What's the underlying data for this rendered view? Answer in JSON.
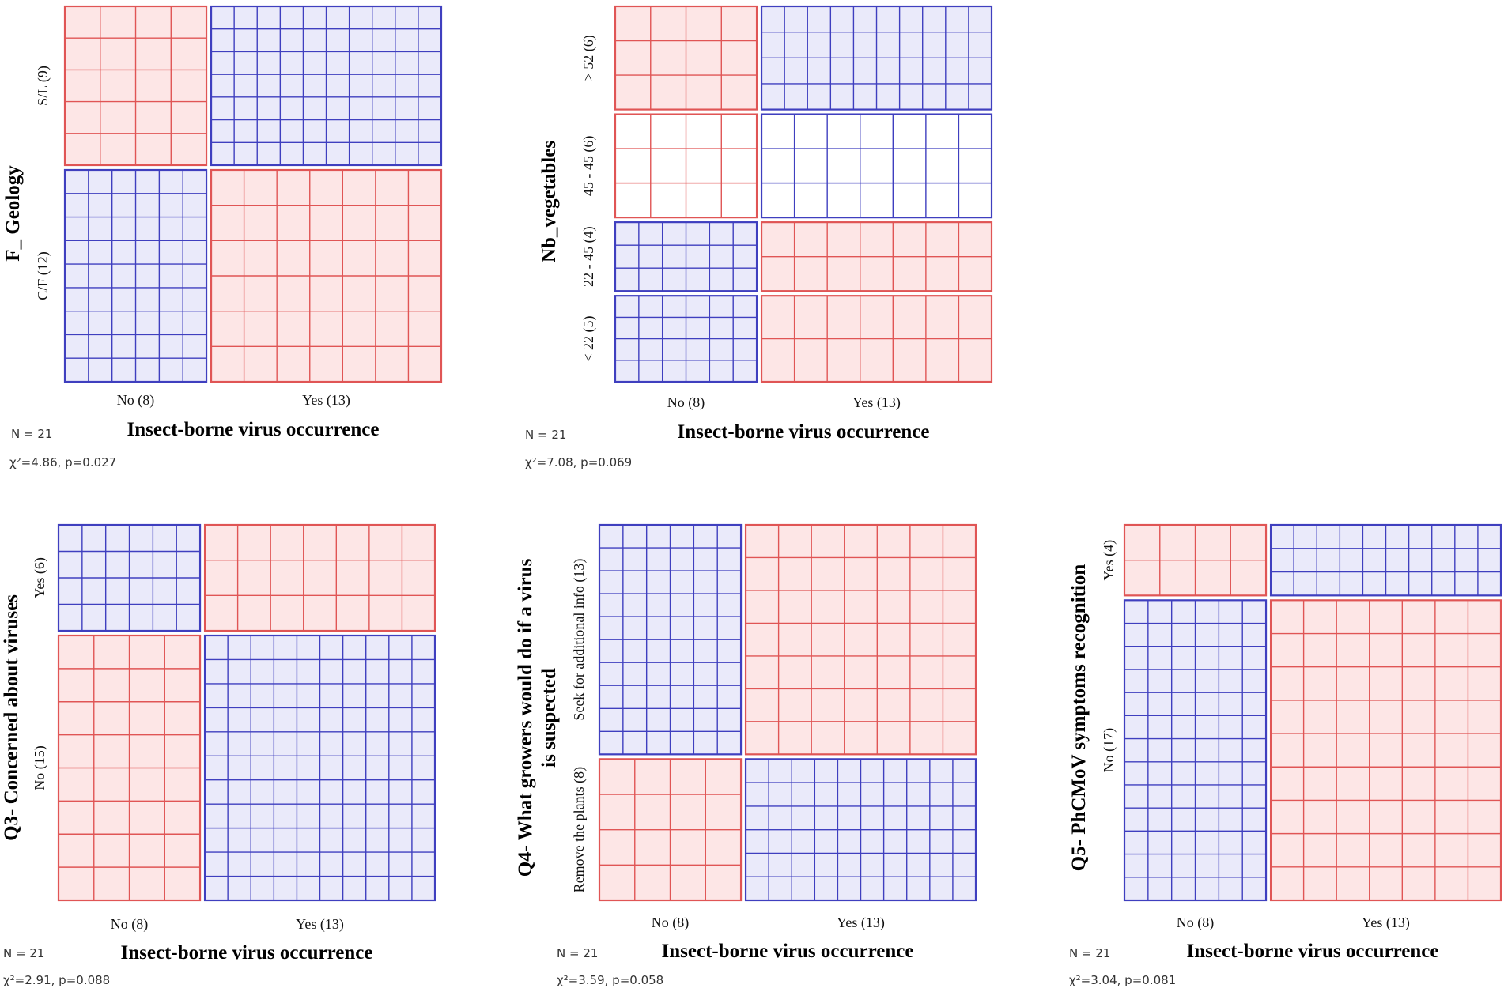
{
  "colors": {
    "red_stroke": "#e05555",
    "red_fill": "#fde6e6",
    "red_fill_light": "#fff4f4",
    "blue_stroke": "#3f3fbf",
    "blue_fill": "#eaeafa",
    "blue_fill_light": "#f7f7ff"
  },
  "chart_data": [
    {
      "type": "mosaic",
      "title": "F_ Geology",
      "xlabel": "Insect-borne virus occurrence",
      "x_categories": [
        "No (8)",
        "Yes (13)"
      ],
      "x_counts": [
        8,
        13
      ],
      "y_categories": [
        "S/L (9)",
        "C/F (12)"
      ],
      "y_counts": [
        9,
        12
      ],
      "residual_sign": [
        [
          "+",
          "-"
        ],
        [
          "-",
          "+"
        ]
      ],
      "n_text": "N = 21",
      "stat_text": "χ²=4.86, p=0.027"
    },
    {
      "type": "mosaic",
      "title": "Nb_vegetables",
      "xlabel": "Insect-borne virus occurrence",
      "x_categories": [
        "No (8)",
        "Yes (13)"
      ],
      "x_counts": [
        8,
        13
      ],
      "y_categories": [
        "> 52 (6)",
        "45 - 45 (6)",
        "22 - 45 (4)",
        "< 22 (5)"
      ],
      "y_counts": [
        6,
        6,
        4,
        5
      ],
      "residual_sign": [
        [
          "+",
          "-"
        ],
        [
          "0",
          "0"
        ],
        [
          "-",
          "+"
        ],
        [
          "-",
          "+"
        ]
      ],
      "n_text": "N = 21",
      "stat_text": "χ²=7.08, p=0.069"
    },
    {
      "type": "mosaic",
      "title": "Q3- Concerned about viruses",
      "xlabel": "Insect-borne virus occurrence",
      "x_categories": [
        "No (8)",
        "Yes (13)"
      ],
      "x_counts": [
        8,
        13
      ],
      "y_categories": [
        "Yes (6)",
        "No (15)"
      ],
      "y_counts": [
        6,
        15
      ],
      "residual_sign": [
        [
          "-",
          "+"
        ],
        [
          "+",
          "-"
        ]
      ],
      "n_text": "N = 21",
      "stat_text": "χ²=2.91, p=0.088"
    },
    {
      "type": "mosaic",
      "title": [
        "Q4- What growers would do if a virus",
        "is suspected"
      ],
      "xlabel": "Insect-borne virus occurrence",
      "x_categories": [
        "No (8)",
        "Yes (13)"
      ],
      "x_counts": [
        8,
        13
      ],
      "y_categories": [
        "Seek for additional info (13)",
        "Remove the plants (8)"
      ],
      "y_counts": [
        13,
        8
      ],
      "residual_sign": [
        [
          "-",
          "+"
        ],
        [
          "+",
          "-"
        ]
      ],
      "n_text": "N = 21",
      "stat_text": "χ²=3.59, p=0.058"
    },
    {
      "type": "mosaic",
      "title": "Q5- PhCMoV symptoms recognition",
      "xlabel": "Insect-borne virus occurrence",
      "x_categories": [
        "No (8)",
        "Yes (13)"
      ],
      "x_counts": [
        8,
        13
      ],
      "y_categories": [
        "Yes (4)",
        "No (17)"
      ],
      "y_counts": [
        4,
        17
      ],
      "residual_sign": [
        [
          "+",
          "-"
        ],
        [
          "-",
          "+"
        ]
      ],
      "n_text": "N = 21",
      "stat_text": "χ²=3.04, p=0.081"
    }
  ]
}
